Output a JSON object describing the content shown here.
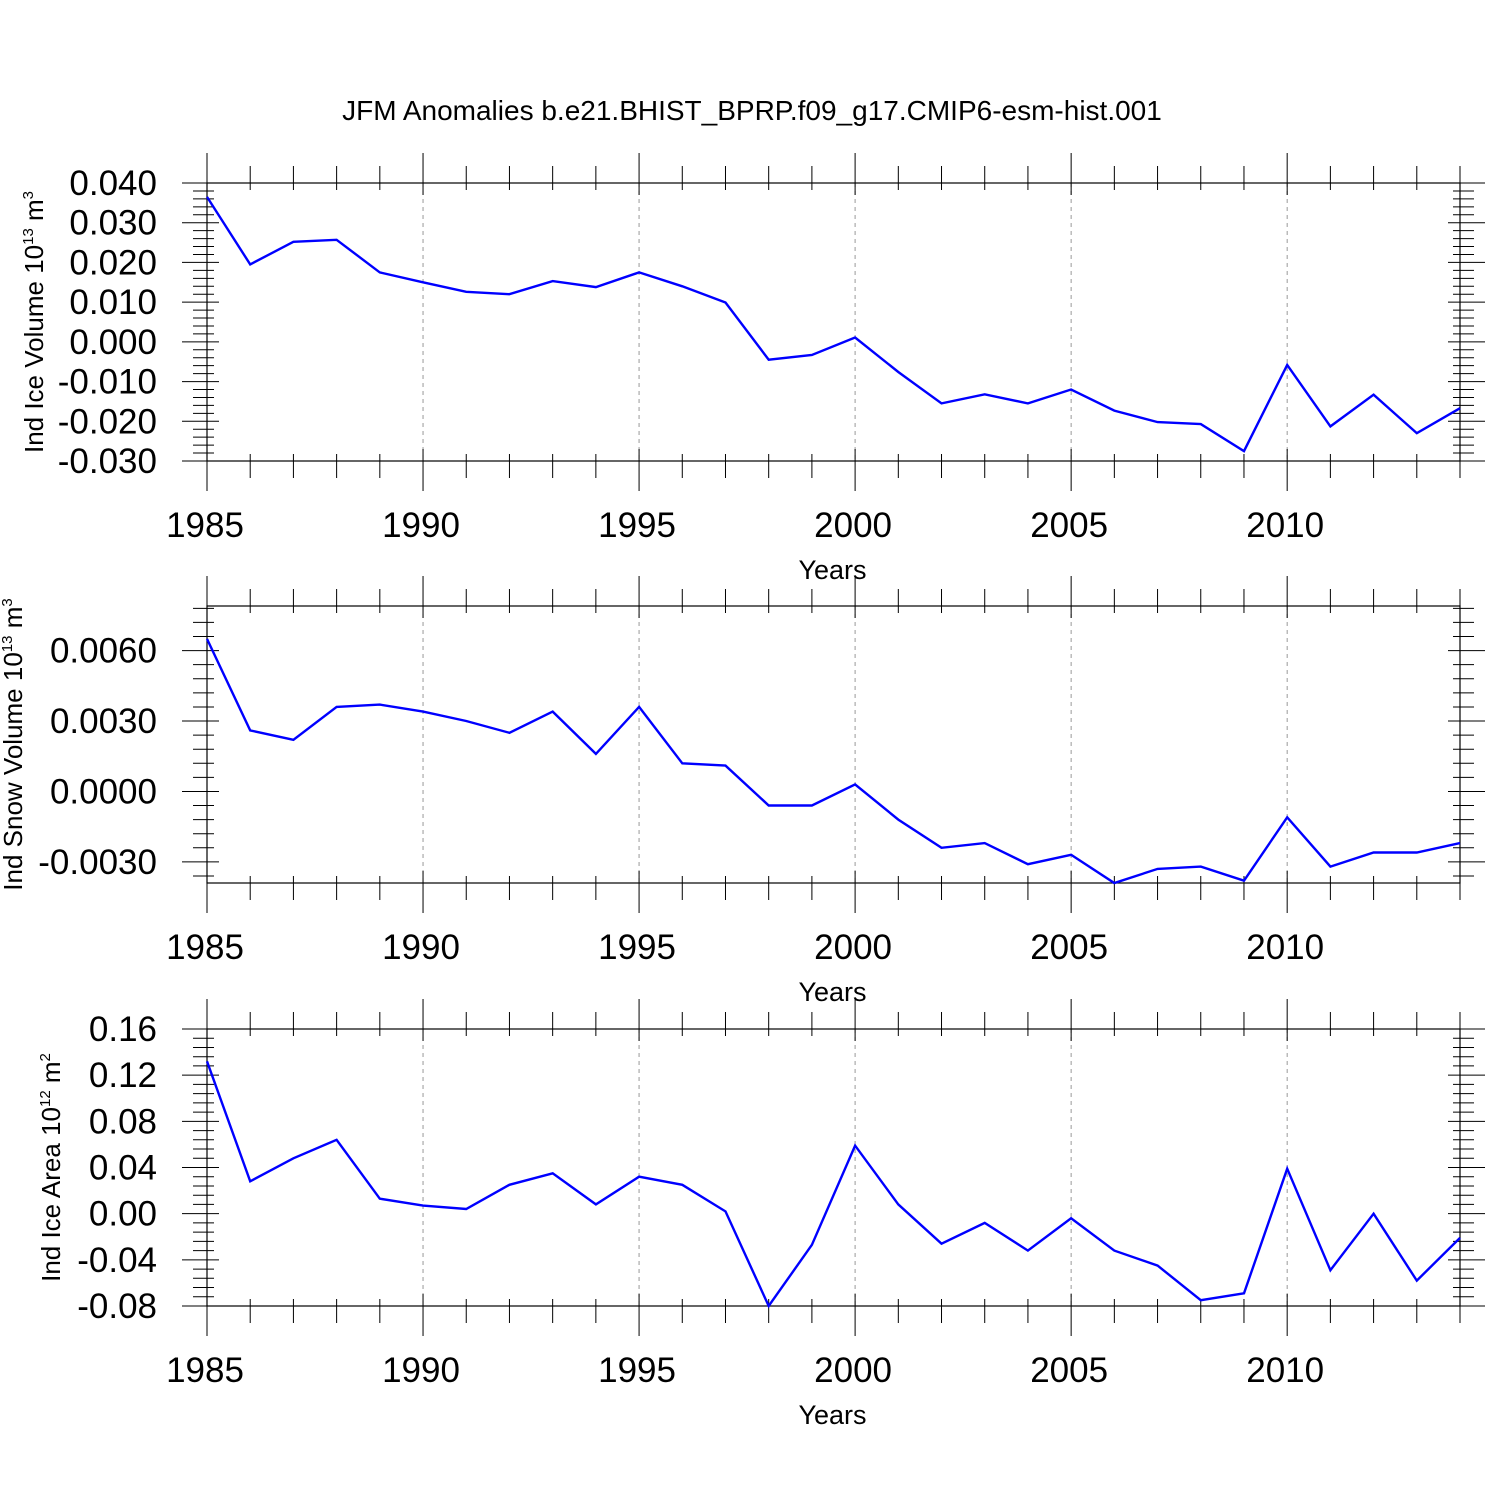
{
  "title": "JFM Anomalies b.e21.BHIST_BPRP.f09_g17.CMIP6-esm-hist.001",
  "colors": {
    "line": "#0000ff",
    "axis": "#000000",
    "grid": "#999999"
  },
  "chart_data": [
    {
      "type": "line",
      "xlabel": "Years",
      "ylabel": {
        "text": "Ind Ice Volume 10",
        "exponent": "13",
        "unit": " m",
        "unit_exponent": "3"
      },
      "x": [
        1985,
        1986,
        1987,
        1988,
        1989,
        1990,
        1991,
        1992,
        1993,
        1994,
        1995,
        1996,
        1997,
        1998,
        1999,
        2000,
        2001,
        2002,
        2003,
        2004,
        2005,
        2006,
        2007,
        2008,
        2009,
        2010,
        2011,
        2012,
        2013,
        2014
      ],
      "values": [
        0.0365,
        0.0195,
        0.0252,
        0.0257,
        0.0175,
        0.015,
        0.0126,
        0.012,
        0.0153,
        0.0138,
        0.0175,
        0.014,
        0.0099,
        -0.0045,
        -0.0033,
        0.0011,
        -0.0076,
        -0.0155,
        -0.0132,
        -0.0155,
        -0.012,
        -0.0173,
        -0.0202,
        -0.0207,
        -0.0275,
        -0.0058,
        -0.0213,
        -0.0133,
        -0.023,
        -0.0167
      ],
      "xlim": [
        1985,
        2014
      ],
      "ylim": [
        -0.03,
        0.04
      ],
      "xticks": [
        1985,
        1990,
        1995,
        2000,
        2005,
        2010
      ],
      "xtick_labels": [
        "1985",
        "1990",
        "1995",
        "2000",
        "2005",
        "2010"
      ],
      "yticks": [
        -0.03,
        -0.02,
        -0.01,
        0.0,
        0.01,
        0.02,
        0.03,
        0.04
      ],
      "ytick_labels": [
        "-0.030",
        "-0.020",
        "-0.010",
        "0.000",
        "0.010",
        "0.020",
        "0.030",
        "0.040"
      ],
      "grid": "vertical dashed at labeled x ticks"
    },
    {
      "type": "line",
      "xlabel": "Years",
      "ylabel": {
        "text": "Ind Snow Volume 10",
        "exponent": "13",
        "unit": " m",
        "unit_exponent": "3"
      },
      "x": [
        1985,
        1986,
        1987,
        1988,
        1989,
        1990,
        1991,
        1992,
        1993,
        1994,
        1995,
        1996,
        1997,
        1998,
        1999,
        2000,
        2001,
        2002,
        2003,
        2004,
        2005,
        2006,
        2007,
        2008,
        2009,
        2010,
        2011,
        2012,
        2013,
        2014
      ],
      "values": [
        0.0065,
        0.0026,
        0.0022,
        0.0036,
        0.0037,
        0.0034,
        0.003,
        0.0025,
        0.0034,
        0.0016,
        0.0036,
        0.0012,
        0.0011,
        -0.0006,
        -0.0006,
        0.0003,
        -0.0012,
        -0.0024,
        -0.0022,
        -0.0031,
        -0.0027,
        -0.0039,
        -0.0033,
        -0.0032,
        -0.0038,
        -0.0011,
        -0.0032,
        -0.0026,
        -0.0026,
        -0.0022
      ],
      "xlim": [
        1985,
        2014
      ],
      "ylim": [
        -0.0039,
        0.0079
      ],
      "xticks": [
        1985,
        1990,
        1995,
        2000,
        2005,
        2010
      ],
      "xtick_labels": [
        "1985",
        "1990",
        "1995",
        "2000",
        "2005",
        "2010"
      ],
      "yticks": [
        -0.003,
        0.0,
        0.003,
        0.006
      ],
      "ytick_labels": [
        "-0.0030",
        "0.0000",
        "0.0030",
        "0.0060"
      ],
      "grid": "vertical dashed at labeled x ticks"
    },
    {
      "type": "line",
      "xlabel": "Years",
      "ylabel": {
        "text": "Ind Ice Area 10",
        "exponent": "12",
        "unit": " m",
        "unit_exponent": "2"
      },
      "x": [
        1985,
        1986,
        1987,
        1988,
        1989,
        1990,
        1991,
        1992,
        1993,
        1994,
        1995,
        1996,
        1997,
        1998,
        1999,
        2000,
        2001,
        2002,
        2003,
        2004,
        2005,
        2006,
        2007,
        2008,
        2009,
        2010,
        2011,
        2012,
        2013,
        2014
      ],
      "values": [
        0.132,
        0.028,
        0.048,
        0.064,
        0.013,
        0.007,
        0.004,
        0.025,
        0.035,
        0.008,
        0.032,
        0.025,
        0.002,
        -0.08,
        -0.027,
        0.059,
        0.008,
        -0.026,
        -0.008,
        -0.032,
        -0.004,
        -0.032,
        -0.045,
        -0.075,
        -0.069,
        0.039,
        -0.049,
        0.0,
        -0.058,
        -0.021
      ],
      "xlim": [
        1985,
        2014
      ],
      "ylim": [
        -0.08,
        0.16
      ],
      "xticks": [
        1985,
        1990,
        1995,
        2000,
        2005,
        2010
      ],
      "xtick_labels": [
        "1985",
        "1990",
        "1995",
        "2000",
        "2005",
        "2010"
      ],
      "yticks": [
        -0.08,
        -0.04,
        0.0,
        0.04,
        0.08,
        0.12,
        0.16
      ],
      "ytick_labels": [
        "-0.08",
        "-0.04",
        "0.00",
        "0.04",
        "0.08",
        "0.12",
        "0.16"
      ],
      "grid": "vertical dashed at labeled x ticks"
    }
  ]
}
